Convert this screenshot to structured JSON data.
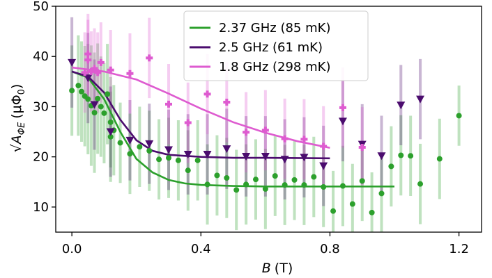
{
  "chart_data": {
    "type": "scatter",
    "xlabel_symbol": "B",
    "xlabel_unit": "(T)",
    "ylabel_symbol": "√A",
    "ylabel_sub": "ΦE",
    "ylabel_unit": "(μΦ",
    "ylabel_unit_sub": "0",
    "ylabel_close": ")",
    "xlim": [
      -0.05,
      1.27
    ],
    "ylim": [
      5,
      50
    ],
    "xticks": [
      0.0,
      0.4,
      0.8,
      1.2
    ],
    "xtick_labels": [
      "0.0",
      "0.4",
      "0.8",
      "1.2"
    ],
    "yticks": [
      10,
      20,
      30,
      40,
      50
    ],
    "ytick_labels": [
      "10",
      "20",
      "30",
      "40",
      "50"
    ],
    "legend_position": "top-center",
    "series": [
      {
        "name": "2.37 GHz (85 mK)",
        "color": "#2ca02c",
        "marker": "circle",
        "points": [
          [
            0.0,
            33.2,
            9
          ],
          [
            0.02,
            34.2,
            10
          ],
          [
            0.03,
            33.0,
            10
          ],
          [
            0.04,
            32.1,
            10
          ],
          [
            0.05,
            31.5,
            11
          ],
          [
            0.06,
            30.2,
            12
          ],
          [
            0.07,
            28.8,
            12
          ],
          [
            0.08,
            31.6,
            11
          ],
          [
            0.09,
            30.0,
            10
          ],
          [
            0.1,
            28.7,
            10
          ],
          [
            0.11,
            32.5,
            10
          ],
          [
            0.12,
            26.9,
            9
          ],
          [
            0.12,
            24.0,
            9
          ],
          [
            0.13,
            25.3,
            9
          ],
          [
            0.15,
            22.8,
            8
          ],
          [
            0.18,
            20.6,
            8
          ],
          [
            0.21,
            22.0,
            8
          ],
          [
            0.24,
            21.2,
            8
          ],
          [
            0.27,
            19.5,
            8
          ],
          [
            0.3,
            19.8,
            8
          ],
          [
            0.33,
            19.3,
            8
          ],
          [
            0.36,
            17.3,
            8
          ],
          [
            0.39,
            19.3,
            8
          ],
          [
            0.42,
            14.5,
            8
          ],
          [
            0.45,
            16.3,
            8
          ],
          [
            0.48,
            15.8,
            8
          ],
          [
            0.51,
            13.4,
            8
          ],
          [
            0.54,
            14.5,
            8
          ],
          [
            0.57,
            15.5,
            8
          ],
          [
            0.6,
            13.6,
            8
          ],
          [
            0.63,
            16.2,
            8
          ],
          [
            0.66,
            14.4,
            8
          ],
          [
            0.69,
            15.4,
            8
          ],
          [
            0.72,
            14.4,
            8
          ],
          [
            0.75,
            16.0,
            8
          ],
          [
            0.78,
            14.0,
            8
          ],
          [
            0.81,
            9.2,
            8
          ],
          [
            0.84,
            14.2,
            8
          ],
          [
            0.87,
            10.6,
            8
          ],
          [
            0.9,
            15.2,
            8
          ],
          [
            0.93,
            8.9,
            8
          ],
          [
            0.96,
            12.7,
            8
          ],
          [
            0.99,
            18.1,
            8
          ],
          [
            1.02,
            20.3,
            8
          ],
          [
            1.05,
            20.2,
            8
          ],
          [
            1.08,
            14.6,
            8
          ],
          [
            1.14,
            19.6,
            8
          ],
          [
            1.2,
            28.2,
            6
          ]
        ],
        "fit": [
          [
            0.0,
            37.0
          ],
          [
            0.05,
            35.8
          ],
          [
            0.1,
            31.5
          ],
          [
            0.15,
            25.0
          ],
          [
            0.2,
            19.6
          ],
          [
            0.25,
            16.9
          ],
          [
            0.3,
            15.4
          ],
          [
            0.35,
            14.7
          ],
          [
            0.4,
            14.4
          ],
          [
            0.5,
            14.2
          ],
          [
            0.6,
            14.1
          ],
          [
            0.8,
            14.1
          ],
          [
            1.0,
            14.1
          ]
        ]
      },
      {
        "name": "2.5 GHz (61 mK)",
        "color": "#4b0c6e",
        "marker": "triangle-down",
        "points": [
          [
            0.0,
            38.8,
            9
          ],
          [
            0.05,
            35.7,
            9
          ],
          [
            0.07,
            30.4,
            9
          ],
          [
            0.12,
            25.0,
            9
          ],
          [
            0.18,
            23.3,
            8
          ],
          [
            0.24,
            22.6,
            8
          ],
          [
            0.3,
            21.4,
            8
          ],
          [
            0.36,
            20.5,
            8
          ],
          [
            0.42,
            20.5,
            8
          ],
          [
            0.48,
            21.6,
            8
          ],
          [
            0.54,
            20.1,
            8
          ],
          [
            0.6,
            20.1,
            8
          ],
          [
            0.66,
            19.5,
            8
          ],
          [
            0.72,
            19.9,
            8
          ],
          [
            0.78,
            18.2,
            8
          ],
          [
            0.84,
            27.1,
            8
          ],
          [
            0.9,
            22.5,
            8
          ],
          [
            0.96,
            20.2,
            8
          ],
          [
            1.02,
            30.3,
            8
          ],
          [
            1.08,
            31.5,
            8
          ]
        ],
        "fit": [
          [
            0.0,
            37.0
          ],
          [
            0.05,
            36.0
          ],
          [
            0.1,
            32.8
          ],
          [
            0.15,
            27.4
          ],
          [
            0.2,
            23.3
          ],
          [
            0.25,
            21.2
          ],
          [
            0.3,
            20.4
          ],
          [
            0.4,
            20.0
          ],
          [
            0.5,
            19.8
          ],
          [
            0.6,
            19.8
          ],
          [
            0.8,
            19.7
          ]
        ]
      },
      {
        "name": "1.8 GHz (298 mK)",
        "color": "#de5bd0",
        "marker": "plus",
        "points": [
          [
            0.04,
            36.8,
            8
          ],
          [
            0.05,
            39.3,
            8
          ],
          [
            0.05,
            40.5,
            8
          ],
          [
            0.06,
            37.0,
            8
          ],
          [
            0.07,
            37.6,
            8
          ],
          [
            0.08,
            36.8,
            8
          ],
          [
            0.09,
            38.8,
            8
          ],
          [
            0.12,
            37.3,
            8
          ],
          [
            0.18,
            36.6,
            8
          ],
          [
            0.24,
            39.7,
            8
          ],
          [
            0.3,
            30.5,
            8
          ],
          [
            0.36,
            26.8,
            8
          ],
          [
            0.42,
            32.5,
            8
          ],
          [
            0.48,
            30.9,
            8
          ],
          [
            0.54,
            24.9,
            8
          ],
          [
            0.6,
            25.3,
            8
          ],
          [
            0.66,
            23.6,
            8
          ],
          [
            0.72,
            23.5,
            8
          ],
          [
            0.78,
            22.1,
            8
          ],
          [
            0.84,
            29.8,
            8
          ],
          [
            0.9,
            21.9,
            8
          ]
        ],
        "fit": [
          [
            0.0,
            37.8
          ],
          [
            0.1,
            37.0
          ],
          [
            0.2,
            35.4
          ],
          [
            0.3,
            32.6
          ],
          [
            0.4,
            29.6
          ],
          [
            0.5,
            26.9
          ],
          [
            0.6,
            24.8
          ],
          [
            0.7,
            23.1
          ],
          [
            0.8,
            21.8
          ]
        ]
      }
    ]
  }
}
